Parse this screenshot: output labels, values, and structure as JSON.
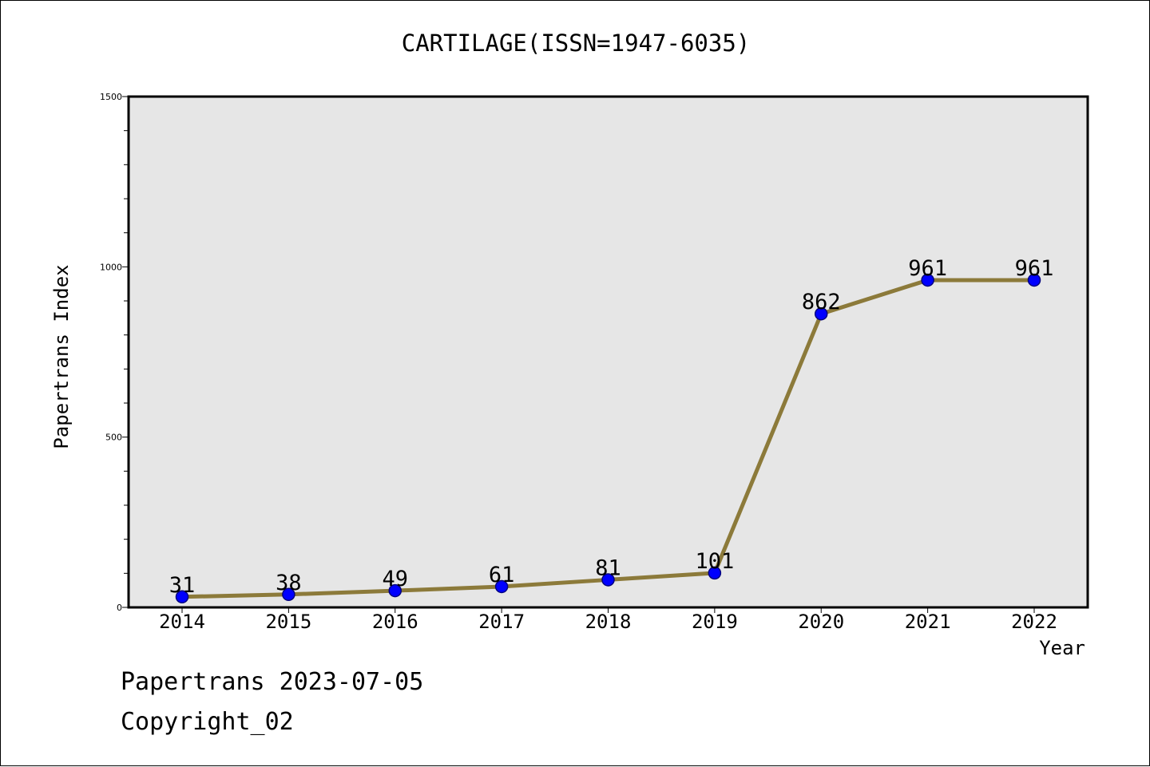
{
  "chart_data": {
    "type": "line",
    "title": "CARTILAGE(ISSN=1947-6035)",
    "xlabel": "Year",
    "ylabel": "Papertrans Index",
    "categories": [
      "2014",
      "2015",
      "2016",
      "2017",
      "2018",
      "2019",
      "2020",
      "2021",
      "2022"
    ],
    "series": [
      {
        "values": [
          31,
          38,
          49,
          61,
          81,
          101,
          862,
          961,
          961
        ]
      }
    ],
    "data_labels": [
      "31",
      "38",
      "49",
      "61",
      "81",
      "101",
      "862",
      "961",
      "961"
    ],
    "ylim": [
      0,
      1500
    ],
    "y_major_ticks": [
      0,
      500,
      1000,
      1500
    ],
    "y_minor_tick_step": 100,
    "grid": false,
    "legend": "none",
    "colors": {
      "line": "#8c7a3a",
      "marker": "#0000ff",
      "marker_edge": "#000080",
      "plot_background": "#e6e6e6",
      "axes": "#000000"
    }
  },
  "footer": {
    "date_line": "Papertrans 2023-07-05",
    "copyright_line": "Copyright_02"
  }
}
